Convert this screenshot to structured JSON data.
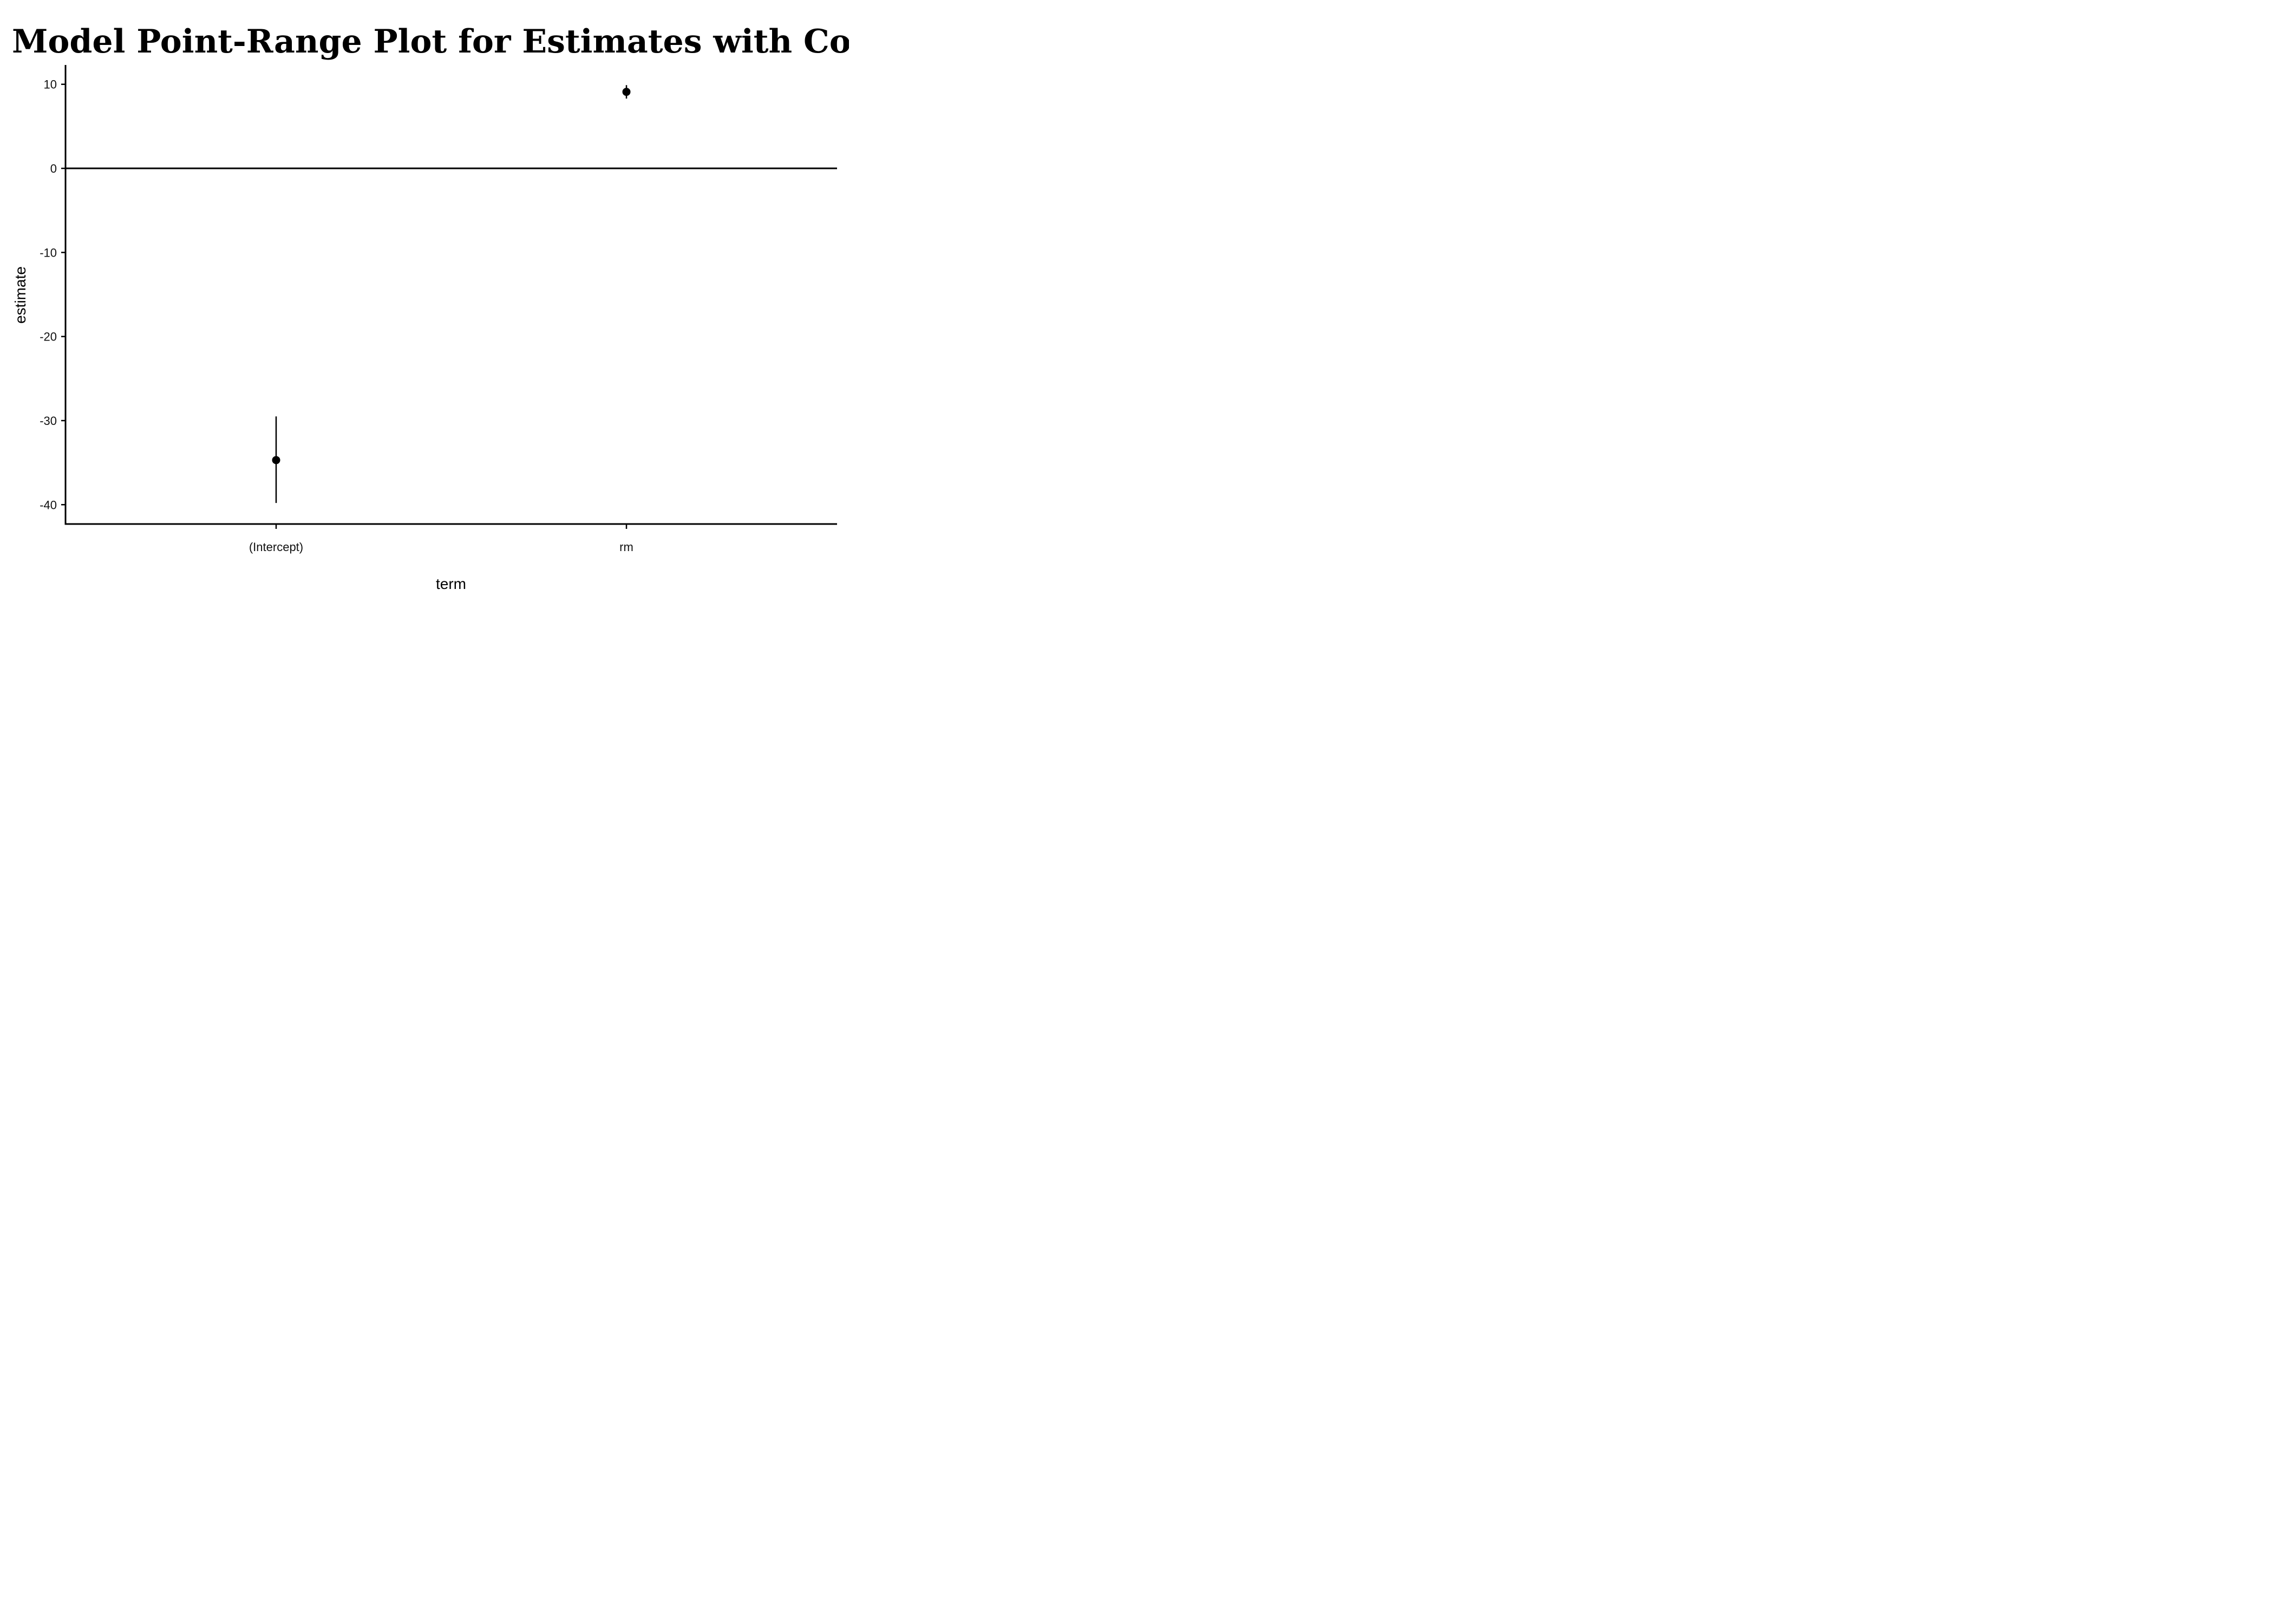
{
  "chart_data": {
    "type": "scatter",
    "variant": "point-range",
    "title": "Model Point-Range Plot for Estimates with Confid",
    "xlabel": "term",
    "ylabel": "estimate",
    "categories": [
      "(Intercept)",
      "rm"
    ],
    "points": [
      {
        "term": "(Intercept)",
        "estimate": -34.7,
        "conf_low": -39.8,
        "conf_high": -29.5
      },
      {
        "term": "rm",
        "estimate": 9.1,
        "conf_low": 8.3,
        "conf_high": 9.9
      }
    ],
    "ylim": [
      -42.3,
      12.3
    ],
    "yticks": [
      10,
      0,
      -10,
      -20,
      -30,
      -40
    ],
    "yticklabels": [
      "10",
      "0",
      "-10",
      "-20",
      "-30",
      "-40"
    ],
    "reference_line": 0,
    "grid": false,
    "legend": "none",
    "colors": {
      "points": "#000000",
      "axes": "#000000",
      "background": "#ffffff"
    }
  }
}
